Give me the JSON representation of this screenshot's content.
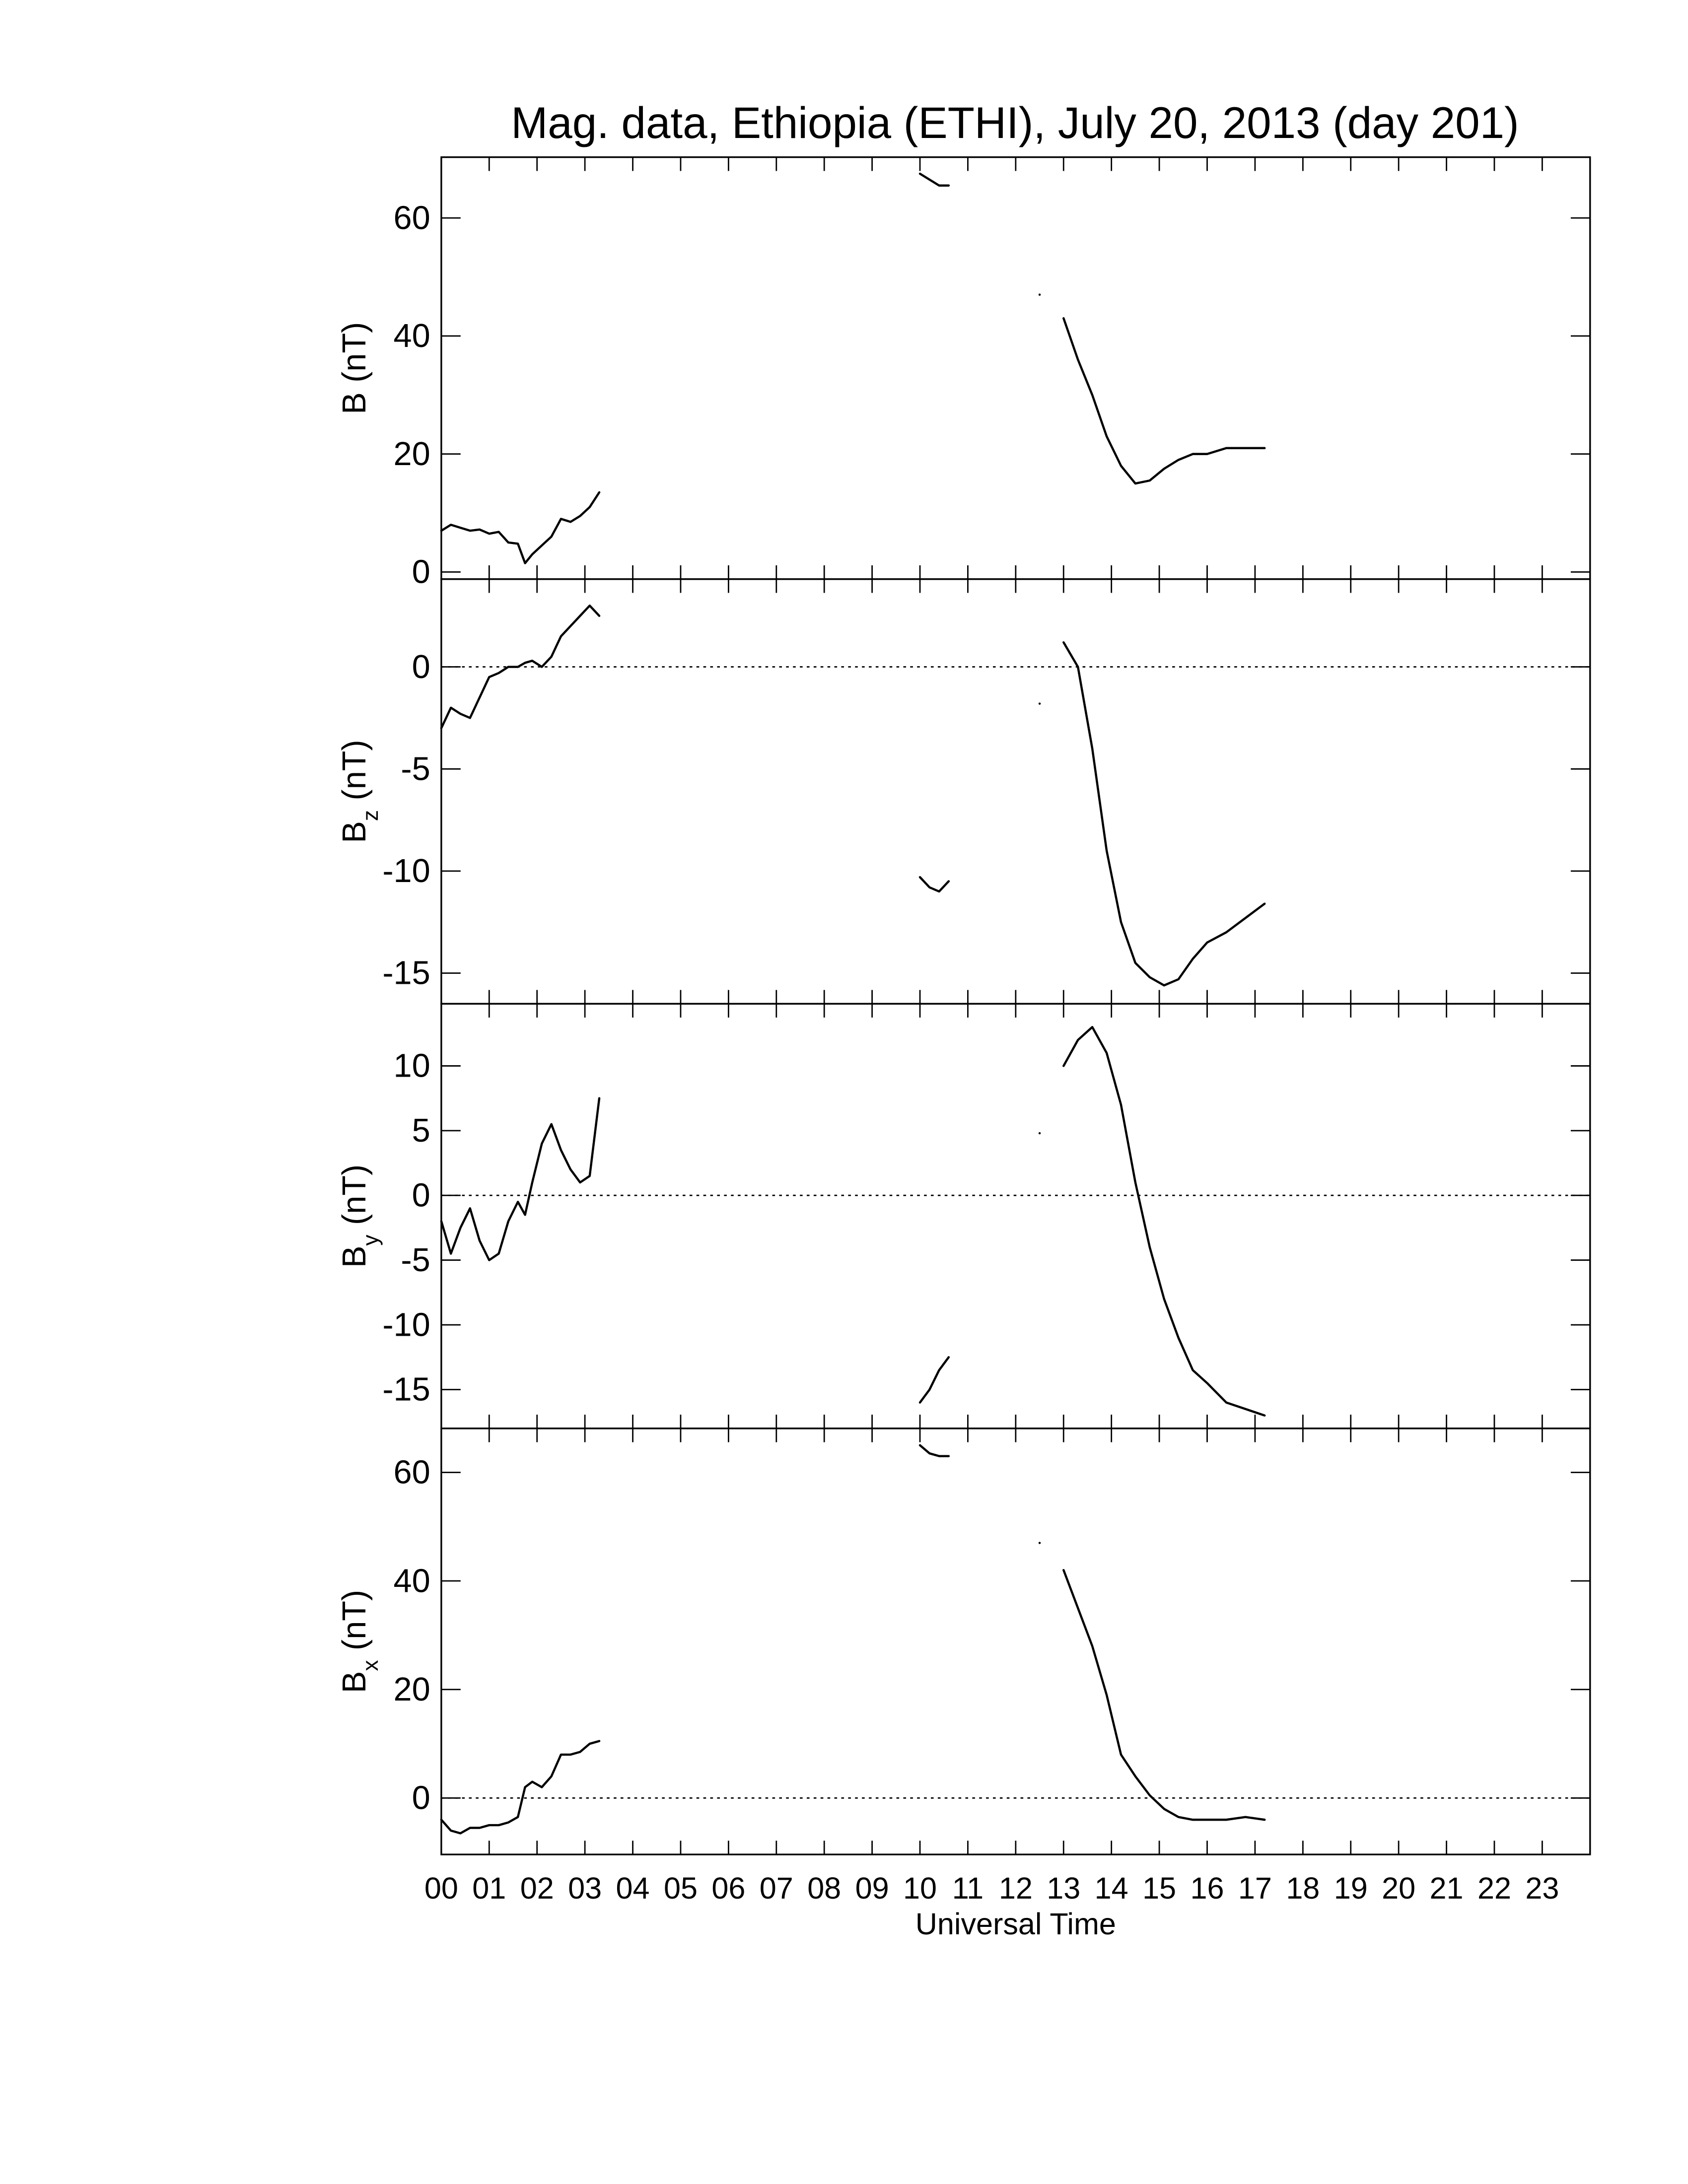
{
  "chart_data": [
    {
      "type": "line",
      "title": "Mag. data, Ethiopia (ETHI), July 20, 2013 (day 201)",
      "ylabel": "B",
      "ylabel_unit": "(nT)",
      "color": "#000000",
      "zero_line": false,
      "x": [
        0,
        0.2,
        0.4,
        0.6,
        0.8,
        1.0,
        1.2,
        1.4,
        1.6,
        1.75,
        1.9,
        2.1,
        2.3,
        2.5,
        2.7,
        2.9,
        3.1,
        3.3,
        6,
        10.0,
        10.2,
        10.4,
        10.6,
        11.5,
        12.5,
        12.7,
        13.0,
        13.3,
        13.6,
        13.9,
        14.2,
        14.5,
        14.8,
        15.1,
        15.4,
        15.7,
        16.0,
        16.4,
        16.8,
        17.2
      ],
      "values": [
        7,
        8,
        7.5,
        7,
        7.2,
        6.5,
        6.8,
        5,
        4.8,
        1.5,
        3,
        4.5,
        6,
        9,
        8.5,
        9.5,
        11,
        13.5,
        null,
        67.5,
        66.5,
        65.5,
        65.5,
        null,
        47,
        null,
        43,
        36,
        30,
        23,
        18,
        15,
        15.5,
        17.5,
        19,
        20,
        20,
        21,
        21,
        21
      ],
      "xlim": [
        0,
        24
      ],
      "xticks": [
        0,
        1,
        2,
        3,
        4,
        5,
        6,
        7,
        8,
        9,
        10,
        11,
        12,
        13,
        14,
        15,
        16,
        17,
        18,
        19,
        20,
        21,
        22,
        23
      ],
      "ylim": [
        -1.2,
        70.3
      ],
      "yticks": [
        0,
        20,
        40,
        60
      ]
    },
    {
      "type": "line",
      "ylabel": "B",
      "ylabel_sub": "z",
      "ylabel_unit": "(nT)",
      "color": "#000000",
      "zero_line": true,
      "x": [
        0,
        0.2,
        0.4,
        0.6,
        0.8,
        1.0,
        1.2,
        1.4,
        1.6,
        1.75,
        1.9,
        2.1,
        2.3,
        2.5,
        2.7,
        2.9,
        3.1,
        3.3,
        6,
        10.0,
        10.2,
        10.4,
        10.6,
        11.5,
        12.5,
        12.7,
        13.0,
        13.3,
        13.6,
        13.9,
        14.2,
        14.5,
        14.8,
        15.1,
        15.4,
        15.7,
        16.0,
        16.4,
        16.8,
        17.2
      ],
      "values": [
        -3,
        -2,
        -2.3,
        -2.5,
        -1.5,
        -0.5,
        -0.3,
        0,
        0,
        0.2,
        0.3,
        0,
        0.5,
        1.5,
        2,
        2.5,
        3,
        2.5,
        null,
        -10.3,
        -10.8,
        -11,
        -10.5,
        null,
        -1.8,
        null,
        1.2,
        0,
        -4,
        -9,
        -12.5,
        -14.5,
        -15.2,
        -15.6,
        -15.3,
        -14.3,
        -13.5,
        -13,
        -12.3,
        -11.6
      ],
      "xlim": [
        0,
        24
      ],
      "xticks": [
        0,
        1,
        2,
        3,
        4,
        5,
        6,
        7,
        8,
        9,
        10,
        11,
        12,
        13,
        14,
        15,
        16,
        17,
        18,
        19,
        20,
        21,
        22,
        23
      ],
      "ylim": [
        -16.5,
        4.3
      ],
      "yticks": [
        -15,
        -10,
        -5,
        0
      ]
    },
    {
      "type": "line",
      "ylabel": "B",
      "ylabel_sub": "y",
      "ylabel_unit": "(nT)",
      "color": "#000000",
      "zero_line": true,
      "x": [
        0,
        0.2,
        0.4,
        0.6,
        0.8,
        1.0,
        1.2,
        1.4,
        1.6,
        1.75,
        1.9,
        2.1,
        2.3,
        2.5,
        2.7,
        2.9,
        3.1,
        3.3,
        6,
        10.0,
        10.2,
        10.4,
        10.6,
        11.5,
        12.5,
        12.7,
        13.0,
        13.3,
        13.6,
        13.9,
        14.2,
        14.5,
        14.8,
        15.1,
        15.4,
        15.7,
        16.0,
        16.4,
        16.8,
        17.2
      ],
      "values": [
        -2,
        -4.5,
        -2.5,
        -1,
        -3.5,
        -5,
        -4.5,
        -2,
        -0.5,
        -1.5,
        1,
        4,
        5.5,
        3.5,
        2,
        1,
        1.5,
        7.5,
        null,
        -16,
        -15,
        -13.5,
        -12.5,
        null,
        4.8,
        null,
        10,
        12,
        13,
        11,
        7,
        1,
        -4,
        -8,
        -11,
        -13.5,
        -14.5,
        -16,
        -16.5,
        -17
      ],
      "xlim": [
        0,
        24
      ],
      "xticks": [
        0,
        1,
        2,
        3,
        4,
        5,
        6,
        7,
        8,
        9,
        10,
        11,
        12,
        13,
        14,
        15,
        16,
        17,
        18,
        19,
        20,
        21,
        22,
        23
      ],
      "ylim": [
        -18,
        14.8
      ],
      "yticks": [
        -15,
        -10,
        -5,
        0,
        5,
        10
      ]
    },
    {
      "type": "line",
      "ylabel": "B",
      "ylabel_sub": "x",
      "ylabel_unit": "(nT)",
      "xlabel": "Universal Time",
      "color": "#000000",
      "zero_line": true,
      "x": [
        0,
        0.2,
        0.4,
        0.6,
        0.8,
        1.0,
        1.2,
        1.4,
        1.6,
        1.75,
        1.9,
        2.1,
        2.3,
        2.5,
        2.7,
        2.9,
        3.1,
        3.3,
        6,
        10.0,
        10.2,
        10.4,
        10.6,
        11.5,
        12.5,
        12.7,
        13.0,
        13.3,
        13.6,
        13.9,
        14.2,
        14.5,
        14.8,
        15.1,
        15.4,
        15.7,
        16.0,
        16.4,
        16.8,
        17.2
      ],
      "values": [
        -4,
        -6,
        -6.5,
        -5.5,
        -5.5,
        -5,
        -5,
        -4.5,
        -3.5,
        2,
        3,
        2,
        4,
        8,
        8,
        8.5,
        10,
        10.5,
        null,
        65,
        63.5,
        63,
        63,
        null,
        47,
        null,
        42,
        35,
        28,
        19,
        8,
        4,
        0.5,
        -2,
        -3.5,
        -4,
        -4,
        -4,
        -3.5,
        -4
      ],
      "xlim": [
        0,
        24
      ],
      "xticks": [
        {
          "value": 0,
          "label": "00"
        },
        {
          "value": 1,
          "label": "01"
        },
        {
          "value": 2,
          "label": "02"
        },
        {
          "value": 3,
          "label": "03"
        },
        {
          "value": 4,
          "label": "04"
        },
        {
          "value": 5,
          "label": "05"
        },
        {
          "value": 6,
          "label": "06"
        },
        {
          "value": 7,
          "label": "07"
        },
        {
          "value": 8,
          "label": "08"
        },
        {
          "value": 9,
          "label": "09"
        },
        10,
        11,
        12,
        13,
        14,
        15,
        16,
        17,
        18,
        19,
        20,
        21,
        22,
        23
      ],
      "ylim": [
        -10.4,
        68.1
      ],
      "yticks": [
        0,
        20,
        40,
        60
      ]
    }
  ]
}
